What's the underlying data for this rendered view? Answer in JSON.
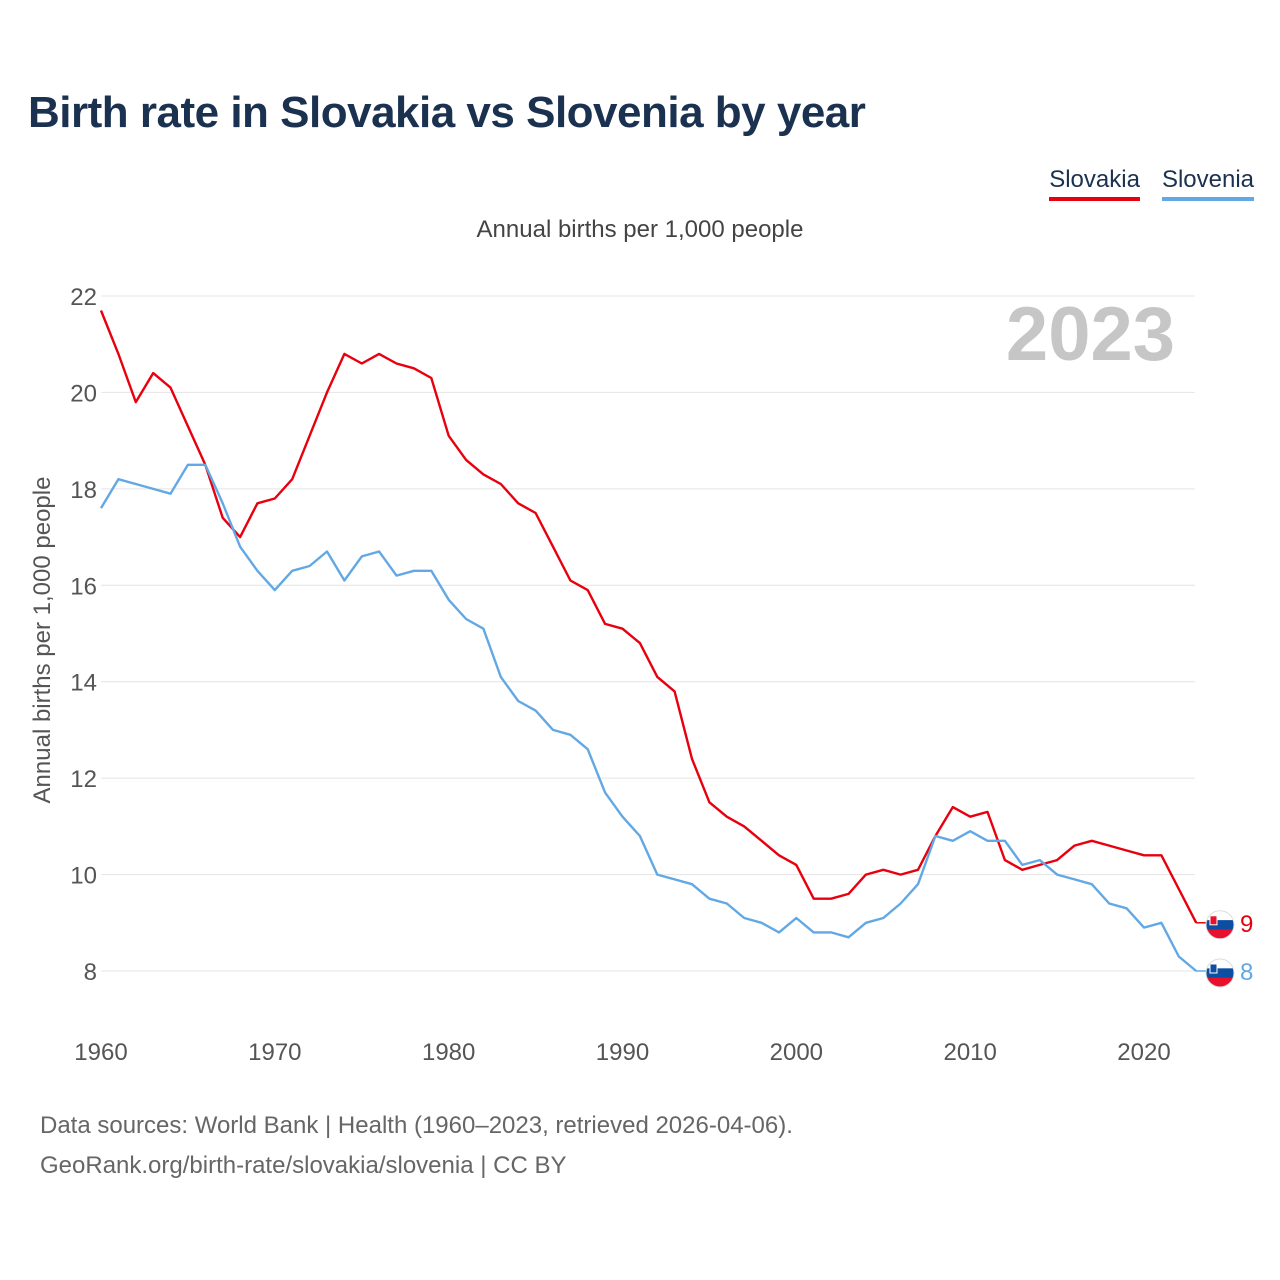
{
  "title": "Birth rate in Slovakia vs Slovenia by year",
  "legend": [
    {
      "name": "Slovakia",
      "color": "#e8000e"
    },
    {
      "name": "Slovenia",
      "color": "#62a8e5"
    }
  ],
  "subtitle": "Annual births per 1,000 people",
  "footer": {
    "source": "Data sources: World Bank | Health (1960–2023, retrieved 2026-04-06).",
    "credit": "GeoRank.org/birth-rate/slovakia/slovenia | CC BY"
  },
  "chart_data": {
    "type": "line",
    "title": "Birth rate in Slovakia vs Slovenia by year",
    "subtitle": "Annual births per 1,000 people",
    "xlabel": "",
    "ylabel": "Annual births per 1,000 people",
    "year_watermark": "2023",
    "xlim": [
      1960,
      2023
    ],
    "ylim": [
      7,
      22
    ],
    "xticks": [
      1960,
      1970,
      1980,
      1990,
      2000,
      2010,
      2020
    ],
    "yticks": [
      8,
      10,
      12,
      14,
      16,
      18,
      20,
      22
    ],
    "grid": "horizontal",
    "legend_position": "top-right",
    "x": [
      1960,
      1961,
      1962,
      1963,
      1964,
      1965,
      1966,
      1967,
      1968,
      1969,
      1970,
      1971,
      1972,
      1973,
      1974,
      1975,
      1976,
      1977,
      1978,
      1979,
      1980,
      1981,
      1982,
      1983,
      1984,
      1985,
      1986,
      1987,
      1988,
      1989,
      1990,
      1991,
      1992,
      1993,
      1994,
      1995,
      1996,
      1997,
      1998,
      1999,
      2000,
      2001,
      2002,
      2003,
      2004,
      2005,
      2006,
      2007,
      2008,
      2009,
      2010,
      2011,
      2012,
      2013,
      2014,
      2015,
      2016,
      2017,
      2018,
      2019,
      2020,
      2021,
      2022,
      2023
    ],
    "series": [
      {
        "name": "Slovakia",
        "color": "#e8000e",
        "end_label": "9",
        "values": [
          21.7,
          20.8,
          19.8,
          20.4,
          20.1,
          19.3,
          18.5,
          17.4,
          17.0,
          17.7,
          17.8,
          18.2,
          19.1,
          20.0,
          20.8,
          20.6,
          20.8,
          20.6,
          20.5,
          20.3,
          19.1,
          18.6,
          18.3,
          18.1,
          17.7,
          17.5,
          16.8,
          16.1,
          15.9,
          15.2,
          15.1,
          14.8,
          14.1,
          13.8,
          12.4,
          11.5,
          11.2,
          11.0,
          10.7,
          10.4,
          10.2,
          9.5,
          9.5,
          9.6,
          10.0,
          10.1,
          10.0,
          10.1,
          10.8,
          11.4,
          11.2,
          11.3,
          10.3,
          10.1,
          10.2,
          10.3,
          10.6,
          10.7,
          10.6,
          10.5,
          10.4,
          10.4,
          9.7,
          9.0
        ]
      },
      {
        "name": "Slovenia",
        "color": "#62a8e5",
        "end_label": "8",
        "values": [
          17.6,
          18.2,
          18.1,
          18.0,
          17.9,
          18.5,
          18.5,
          17.7,
          16.8,
          16.3,
          15.9,
          16.3,
          16.4,
          16.7,
          16.1,
          16.6,
          16.7,
          16.2,
          16.3,
          16.3,
          15.7,
          15.3,
          15.1,
          14.1,
          13.6,
          13.4,
          13.0,
          12.9,
          12.6,
          11.7,
          11.2,
          10.8,
          10.0,
          9.9,
          9.8,
          9.5,
          9.4,
          9.1,
          9.0,
          8.8,
          9.1,
          8.8,
          8.8,
          8.7,
          9.0,
          9.1,
          9.4,
          9.8,
          10.8,
          10.7,
          10.9,
          10.7,
          10.7,
          10.2,
          10.3,
          10.0,
          9.9,
          9.8,
          9.4,
          9.3,
          8.9,
          9.0,
          8.3,
          8.0
        ]
      }
    ]
  }
}
